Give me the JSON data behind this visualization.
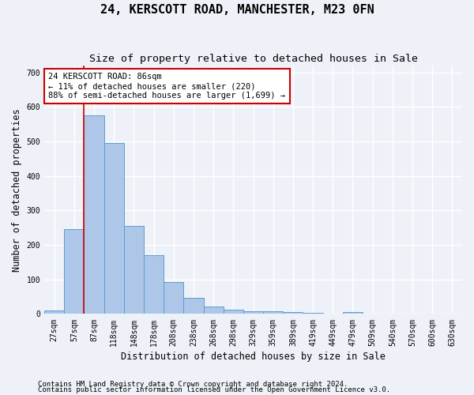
{
  "title": "24, KERSCOTT ROAD, MANCHESTER, M23 0FN",
  "subtitle": "Size of property relative to detached houses in Sale",
  "xlabel": "Distribution of detached houses by size in Sale",
  "ylabel": "Number of detached properties",
  "footnote1": "Contains HM Land Registry data © Crown copyright and database right 2024.",
  "footnote2": "Contains public sector information licensed under the Open Government Licence v3.0.",
  "bin_labels": [
    "27sqm",
    "57sqm",
    "87sqm",
    "118sqm",
    "148sqm",
    "178sqm",
    "208sqm",
    "238sqm",
    "268sqm",
    "298sqm",
    "329sqm",
    "359sqm",
    "389sqm",
    "419sqm",
    "449sqm",
    "479sqm",
    "509sqm",
    "540sqm",
    "570sqm",
    "600sqm",
    "630sqm"
  ],
  "bar_values": [
    10,
    245,
    575,
    495,
    255,
    170,
    92,
    47,
    22,
    12,
    9,
    7,
    5,
    3,
    0,
    5,
    0,
    0,
    0,
    0,
    0
  ],
  "bar_color": "#aec6e8",
  "bar_edge_color": "#5a9fd4",
  "line_color": "#cc0000",
  "annotation_text": "24 KERSCOTT ROAD: 86sqm\n← 11% of detached houses are smaller (220)\n88% of semi-detached houses are larger (1,699) →",
  "annotation_box_color": "#ffffff",
  "annotation_box_edge": "#cc0000",
  "ylim": [
    0,
    720
  ],
  "yticks": [
    0,
    100,
    200,
    300,
    400,
    500,
    600,
    700
  ],
  "bg_color": "#eef2f8",
  "plot_bg_color": "#eef2f8",
  "grid_color": "#ffffff",
  "title_fontsize": 11,
  "subtitle_fontsize": 9.5,
  "axis_label_fontsize": 8.5,
  "tick_fontsize": 7,
  "footnote_fontsize": 6.5,
  "annotation_fontsize": 7.5
}
